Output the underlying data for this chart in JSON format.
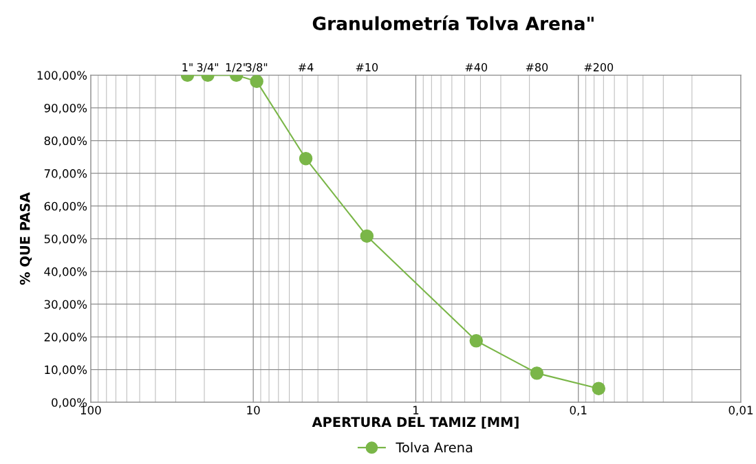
{
  "chart_data": {
    "type": "line",
    "title": "Granulometría Tolva Arena\"",
    "xlabel": "APERTURA DEL TAMIZ [MM]",
    "ylabel": "% QUE PASA",
    "x": [
      25.4,
      19.05,
      12.7,
      9.525,
      4.75,
      2.0,
      0.425,
      0.18,
      0.075
    ],
    "series": [
      {
        "name": "Tolva Arena",
        "color": "#7ab648",
        "values": [
          100,
          100,
          100,
          98.1,
          74.5,
          50.8,
          18.8,
          8.9,
          4.2
        ]
      }
    ],
    "log": "x",
    "xlim": [
      100,
      0.01
    ],
    "xticks": [
      100,
      10,
      1,
      {
        "value": 0.1,
        "label": "0,1"
      },
      {
        "value": 0.01,
        "label": "0,01"
      }
    ],
    "ylim": [
      0,
      100
    ],
    "yticks": [
      {
        "value": 0,
        "label": "0,00%"
      },
      {
        "value": 10,
        "label": "10,00%"
      },
      {
        "value": 20,
        "label": "20,00%"
      },
      {
        "value": 30,
        "label": "30,00%"
      },
      {
        "value": 40,
        "label": "40,00%"
      },
      {
        "value": 50,
        "label": "50,00%"
      },
      {
        "value": 60,
        "label": "60,00%"
      },
      {
        "value": 70,
        "label": "70,00%"
      },
      {
        "value": 80,
        "label": "80,00%"
      },
      {
        "value": 90,
        "label": "90,00%"
      },
      {
        "value": 100,
        "label": "100,00%"
      }
    ],
    "annotations": [
      "1\"",
      "3/4\"",
      "1/2\"",
      "3/8\"",
      "#4",
      "#10",
      "#40",
      "#80",
      "#200"
    ],
    "grid": true,
    "legend": "bottom",
    "marker": "circle",
    "line_style": "solid"
  }
}
